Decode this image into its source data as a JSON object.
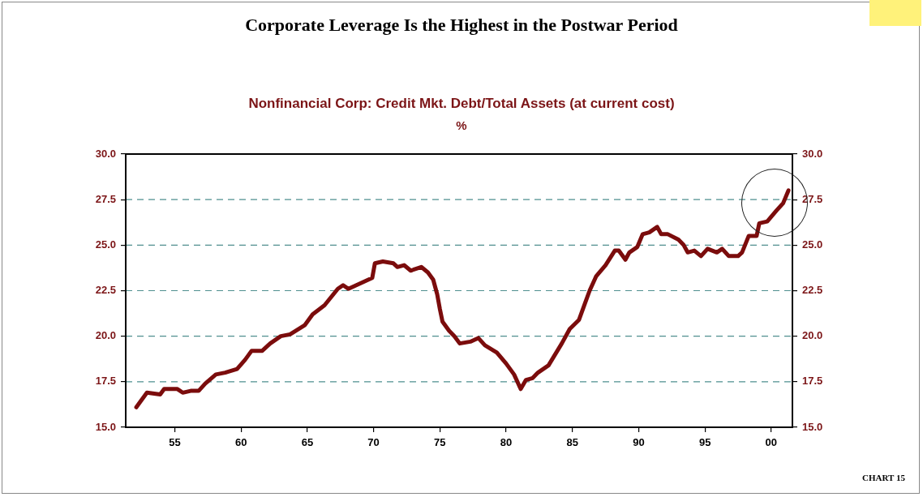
{
  "chart_data": {
    "type": "line",
    "title": "Corporate Leverage Is the Highest in the Postwar Period",
    "subtitle": "Nonfinancial Corp: Credit Mkt. Debt/Total Assets (at current cost)",
    "annotations": [
      "%",
      "CHART 15"
    ],
    "x": [
      1952.1,
      1952.9,
      1953.9,
      1954.2,
      1955.2,
      1955.6,
      1956.2,
      1956.8,
      1957.3,
      1958.1,
      1958.8,
      1959.7,
      1960.3,
      1960.8,
      1961.6,
      1962.2,
      1963.0,
      1963.7,
      1964.8,
      1965.4,
      1966.3,
      1967.3,
      1967.7,
      1968.1,
      1969.3,
      1969.9,
      1970.1,
      1970.7,
      1971.5,
      1971.8,
      1972.3,
      1972.8,
      1973.6,
      1974.1,
      1974.5,
      1974.8,
      1975.0,
      1975.2,
      1975.7,
      1976.1,
      1976.5,
      1977.3,
      1977.9,
      1978.4,
      1979.3,
      1980.0,
      1980.6,
      1981.1,
      1981.5,
      1982.0,
      1982.4,
      1983.2,
      1984.2,
      1984.8,
      1985.5,
      1985.9,
      1986.3,
      1986.8,
      1987.5,
      1988.2,
      1988.5,
      1989.0,
      1989.3,
      1989.9,
      1990.3,
      1990.8,
      1991.4,
      1991.7,
      1992.2,
      1993.0,
      1993.4,
      1993.7,
      1994.2,
      1994.7,
      1995.2,
      1995.9,
      1996.3,
      1996.8,
      1997.5,
      1997.8,
      1998.3,
      1998.9,
      1999.1,
      1999.7,
      2000.4,
      2000.9,
      2001.3
    ],
    "series": [
      {
        "color": "#7b0c0c",
        "values": [
          16.1,
          16.9,
          16.8,
          17.1,
          17.1,
          16.9,
          17.0,
          17.0,
          17.4,
          17.9,
          18.0,
          18.2,
          18.7,
          19.2,
          19.2,
          19.6,
          20.0,
          20.1,
          20.6,
          21.2,
          21.7,
          22.6,
          22.8,
          22.6,
          23.0,
          23.2,
          24.0,
          24.1,
          24.0,
          23.8,
          23.9,
          23.6,
          23.8,
          23.5,
          23.1,
          22.3,
          21.5,
          20.8,
          20.3,
          20.0,
          19.6,
          19.7,
          19.9,
          19.5,
          19.1,
          18.5,
          17.9,
          17.1,
          17.6,
          17.7,
          18.0,
          18.4,
          19.6,
          20.4,
          20.9,
          21.7,
          22.5,
          23.3,
          23.9,
          24.7,
          24.7,
          24.2,
          24.6,
          24.9,
          25.6,
          25.7,
          26.0,
          25.6,
          25.6,
          25.3,
          25.0,
          24.6,
          24.7,
          24.4,
          24.8,
          24.6,
          24.8,
          24.4,
          24.4,
          24.6,
          25.5,
          25.5,
          26.2,
          26.3,
          26.9,
          27.3,
          28.0
        ]
      }
    ],
    "xlim": [
      1951.3,
      2001.6
    ],
    "xticks": [
      {
        "value": 1955,
        "label": "55"
      },
      {
        "value": 1960,
        "label": "60"
      },
      {
        "value": 1965,
        "label": "65"
      },
      {
        "value": 1970,
        "label": "70"
      },
      {
        "value": 1975,
        "label": "75"
      },
      {
        "value": 1980,
        "label": "80"
      },
      {
        "value": 1985,
        "label": "85"
      },
      {
        "value": 1990,
        "label": "90"
      },
      {
        "value": 1995,
        "label": "95"
      },
      {
        "value": 2000,
        "label": "00"
      }
    ],
    "ylim": [
      15,
      30
    ],
    "yticks": [
      {
        "value": 15,
        "label": "15.0"
      },
      {
        "value": 17.5,
        "label": "17.5"
      },
      {
        "value": 20,
        "label": "20.0"
      },
      {
        "value": 22.5,
        "label": "22.5"
      },
      {
        "value": 25,
        "label": "25.0"
      },
      {
        "value": 27.5,
        "label": "27.5"
      },
      {
        "value": 30,
        "label": "30.0"
      }
    ],
    "y2lim": [
      15,
      30
    ],
    "y2ticks": [
      {
        "value": 15,
        "label": "15.0"
      },
      {
        "value": 17.5,
        "label": "17.5"
      },
      {
        "value": 20,
        "label": "20.0"
      },
      {
        "value": 22.5,
        "label": "22.5"
      },
      {
        "value": 25,
        "label": "25.0"
      },
      {
        "value": 27.5,
        "label": "27.5"
      },
      {
        "value": 30,
        "label": "30.0"
      }
    ],
    "grid": "y",
    "legend": false,
    "marker": "none",
    "line_style": "solid"
  }
}
